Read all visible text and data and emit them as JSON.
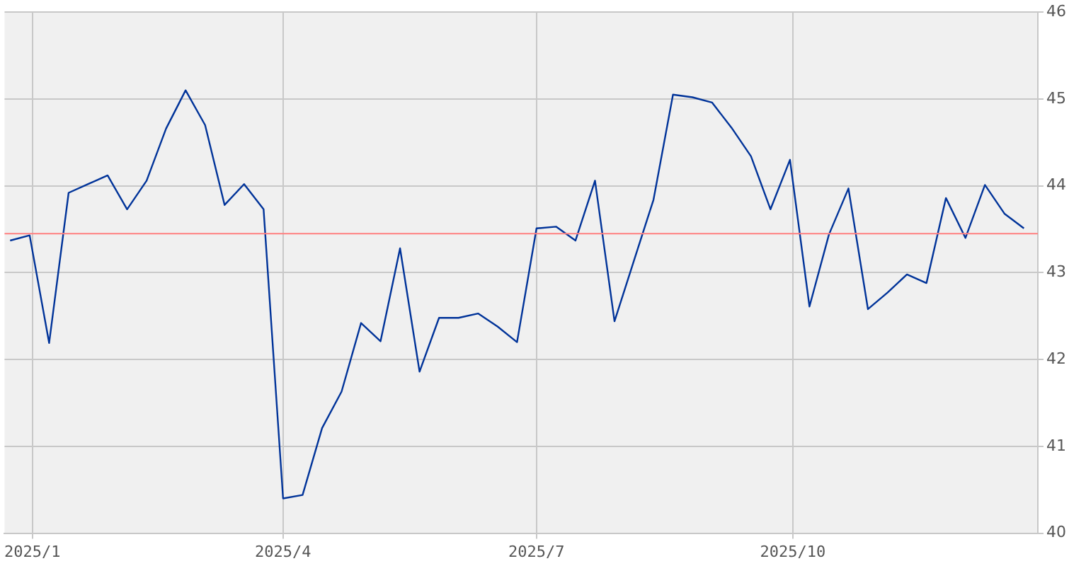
{
  "chart_data": {
    "type": "line",
    "x": [
      "2024-12-24",
      "2024-12-31",
      "2025-01-07",
      "2025-01-14",
      "2025-01-21",
      "2025-01-28",
      "2025-02-04",
      "2025-02-11",
      "2025-02-18",
      "2025-02-25",
      "2025-03-04",
      "2025-03-11",
      "2025-03-18",
      "2025-03-25",
      "2025-04-01",
      "2025-04-08",
      "2025-04-15",
      "2025-04-22",
      "2025-04-29",
      "2025-05-06",
      "2025-05-13",
      "2025-05-20",
      "2025-05-27",
      "2025-06-03",
      "2025-06-10",
      "2025-06-17",
      "2025-06-24",
      "2025-07-01",
      "2025-07-08",
      "2025-07-15",
      "2025-07-22",
      "2025-07-29",
      "2025-08-05",
      "2025-08-12",
      "2025-08-19",
      "2025-08-26",
      "2025-09-02",
      "2025-09-09",
      "2025-09-16",
      "2025-09-23",
      "2025-09-30",
      "2025-10-07",
      "2025-10-14",
      "2025-10-21",
      "2025-10-28",
      "2025-11-04",
      "2025-11-11",
      "2025-11-18",
      "2025-11-25",
      "2025-12-02",
      "2025-12-09",
      "2025-12-16",
      "2025-12-23"
    ],
    "series": [
      {
        "color": "#003399",
        "values": [
          43.37,
          43.43,
          42.19,
          43.92,
          44.02,
          44.12,
          43.73,
          44.06,
          44.66,
          45.1,
          44.7,
          43.78,
          44.02,
          43.73,
          40.4,
          40.44,
          41.21,
          41.63,
          42.42,
          42.21,
          43.28,
          41.86,
          42.48,
          42.48,
          42.53,
          42.38,
          42.2,
          43.51,
          43.53,
          43.37,
          44.06,
          42.44,
          43.14,
          43.84,
          45.05,
          45.02,
          44.96,
          44.67,
          44.34,
          43.73,
          44.3,
          42.61,
          43.44,
          43.97,
          42.58,
          42.77,
          42.98,
          42.88,
          43.86,
          43.4,
          44.01,
          43.68,
          43.51
        ]
      }
    ],
    "xlim": [
      "2024-12-22",
      "2025-12-28"
    ],
    "xticks": [
      {
        "value": "2025-01-01",
        "label": "2025/1"
      },
      {
        "value": "2025-04-01",
        "label": "2025/4"
      },
      {
        "value": "2025-07-01",
        "label": "2025/7"
      },
      {
        "value": "2025-10-01",
        "label": "2025/10"
      }
    ],
    "ylim": [
      40,
      46
    ],
    "yticks": [
      40,
      41,
      42,
      43,
      44,
      45,
      46
    ],
    "ref_lines": [
      {
        "axis": "y",
        "value": 43.45,
        "color": "#ff8080"
      }
    ],
    "grid": true,
    "legend": false,
    "marker": "none",
    "line_style": "solid"
  }
}
